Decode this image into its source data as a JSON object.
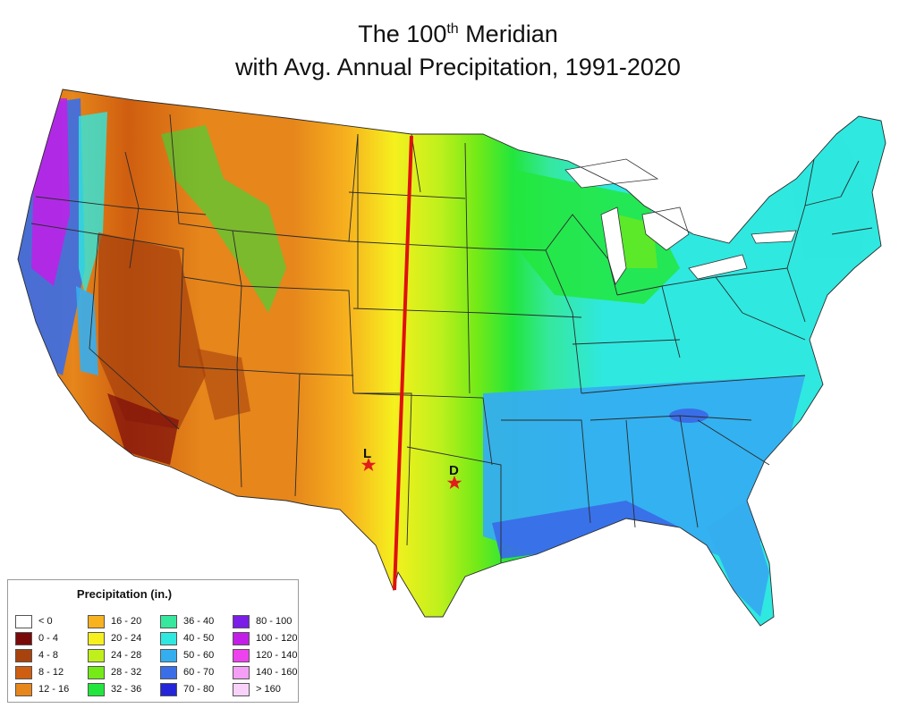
{
  "title": {
    "line1_before": "The 100",
    "line1_sup": "th",
    "line1_after": " Meridian",
    "line2": "with Avg. Annual Precipitation, 1991-2020"
  },
  "markers": [
    {
      "label": "L",
      "color": "#e21b1b"
    },
    {
      "label": "D",
      "color": "#e21b1b"
    }
  ],
  "meridian": {
    "color": "#e01010"
  },
  "legend": {
    "title": "Precipitation (in.)",
    "items": [
      {
        "label": "< 0",
        "color": "#ffffff"
      },
      {
        "label": "0 - 4",
        "color": "#7a0a0a"
      },
      {
        "label": "4 - 8",
        "color": "#a8430e"
      },
      {
        "label": "8 - 12",
        "color": "#cf5e10"
      },
      {
        "label": "12 - 16",
        "color": "#e6861b"
      },
      {
        "label": "16 - 20",
        "color": "#f7b21e"
      },
      {
        "label": "20 - 24",
        "color": "#f5f01e"
      },
      {
        "label": "24 - 28",
        "color": "#bff01c"
      },
      {
        "label": "28 - 32",
        "color": "#74ea17"
      },
      {
        "label": "32 - 36",
        "color": "#22e63c"
      },
      {
        "label": "36 - 40",
        "color": "#35e89e"
      },
      {
        "label": "40 - 50",
        "color": "#2fe8e0"
      },
      {
        "label": "50 - 60",
        "color": "#35aef0"
      },
      {
        "label": "60 - 70",
        "color": "#3a6ee8"
      },
      {
        "label": "70 - 80",
        "color": "#2424d8"
      },
      {
        "label": "80 - 100",
        "color": "#7a1ee8"
      },
      {
        "label": "100 - 120",
        "color": "#c21ee8"
      },
      {
        "label": "120 - 140",
        "color": "#ee42ee"
      },
      {
        "label": "140 - 160",
        "color": "#f59ef5"
      },
      {
        "label": "> 160",
        "color": "#f9d2f9"
      }
    ]
  }
}
